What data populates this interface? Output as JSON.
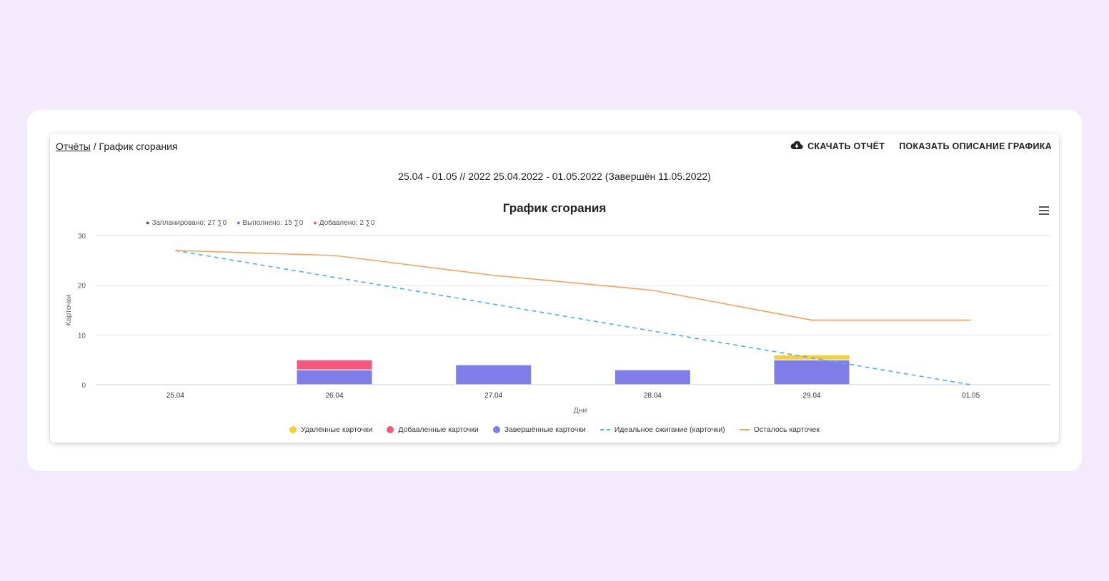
{
  "breadcrumb": {
    "root": "Отчёты",
    "separator": " / ",
    "current": "График сгорания"
  },
  "actions": {
    "download_label": "СКАЧАТЬ ОТЧЁТ",
    "download_icon": "cloud-download-icon",
    "describe_label": "ПОКАЗАТЬ ОПИСАНИЕ ГРАФИКА"
  },
  "period": "25.04 - 01.05 // 2022 25.04.2022 - 01.05.2022 (Завершён 11.05.2022)",
  "menu_icon": "hamburger-menu-icon",
  "summary": [
    {
      "text": "Запланировано: 27 ∑0",
      "color": "#555555"
    },
    {
      "text": "Выполнено: 15 ∑0",
      "color": "#6c6fe0"
    },
    {
      "text": "Добавлено: 2 ∑0",
      "color": "#f24f75"
    }
  ],
  "chart_data": {
    "type": "bar",
    "title": "График сгорания",
    "xlabel": "Дни",
    "ylabel": "Карточки",
    "categories": [
      "25.04",
      "26.04",
      "27.04",
      "28.04",
      "29.04",
      "01.05"
    ],
    "ylim": [
      0,
      30
    ],
    "yticks": [
      0,
      10,
      20,
      30
    ],
    "grid": true,
    "legend_position": "bottom",
    "series": [
      {
        "name": "Удалённые карточки",
        "kind": "bar",
        "color": "#f2d03b",
        "values": [
          0,
          0,
          0,
          0,
          1,
          0
        ]
      },
      {
        "name": "Добавленные карточки",
        "kind": "bar",
        "color": "#f2577c",
        "values": [
          0,
          2,
          0,
          0,
          0,
          0
        ]
      },
      {
        "name": "Завершённые карточки",
        "kind": "bar",
        "color": "#7f7ee8",
        "values": [
          0,
          3,
          4,
          3,
          5,
          0
        ]
      },
      {
        "name": "Идеальное сжигание (карточки)",
        "kind": "line",
        "dashed": true,
        "color": "#4fb0e8",
        "values": [
          27,
          21.6,
          16.2,
          10.8,
          5.4,
          0
        ]
      },
      {
        "name": "Осталось карточек",
        "kind": "line",
        "dashed": false,
        "color": "#f6a25c",
        "values": [
          27,
          26,
          22,
          19,
          13,
          13
        ]
      }
    ]
  }
}
